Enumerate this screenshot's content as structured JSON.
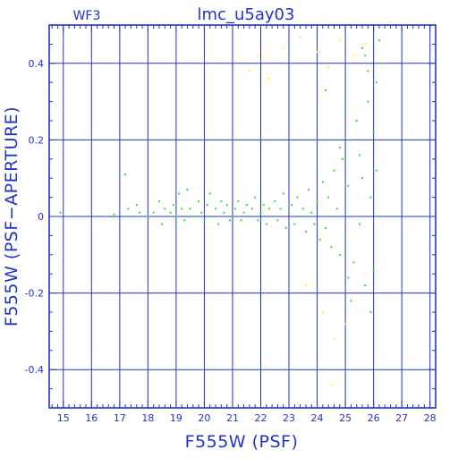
{
  "chart_data": {
    "type": "scatter",
    "title": "lmc_u5ay03",
    "subtitle": "WF3",
    "xlabel": "F555W (PSF)",
    "ylabel": "F555W (PSF−APERTURE)",
    "xlim": [
      14.5,
      28.2
    ],
    "ylim": [
      -0.5,
      0.5
    ],
    "x_ticks": [
      15,
      16,
      17,
      18,
      19,
      20,
      21,
      22,
      23,
      24,
      25,
      26,
      27,
      28
    ],
    "y_ticks": [
      0.4,
      0.2,
      0,
      -0.2,
      -0.4
    ],
    "y_tick_labels": [
      "0.4",
      "0.2",
      "0",
      "-0.2",
      "-0.4"
    ],
    "grid": true,
    "colors": {
      "axis": "#2233cc",
      "primary_points": "#33dd33",
      "secondary_points": "#ffee33"
    },
    "series": [
      {
        "points": [
          [
            14.9,
            0.01
          ],
          [
            16.7,
            0.0
          ],
          [
            16.8,
            0.005
          ],
          [
            17.2,
            0.11
          ],
          [
            17.3,
            0.02
          ],
          [
            17.6,
            0.03
          ],
          [
            17.7,
            0.01
          ],
          [
            18.0,
            0.0
          ],
          [
            18.2,
            0.01
          ],
          [
            18.4,
            0.04
          ],
          [
            18.5,
            -0.02
          ],
          [
            18.6,
            0.02
          ],
          [
            18.8,
            0.01
          ],
          [
            18.9,
            0.03
          ],
          [
            19.0,
            0.0
          ],
          [
            19.1,
            0.06
          ],
          [
            19.2,
            0.02
          ],
          [
            19.3,
            -0.01
          ],
          [
            19.4,
            0.07
          ],
          [
            19.5,
            0.02
          ],
          [
            19.6,
            0.0
          ],
          [
            19.8,
            0.04
          ],
          [
            19.9,
            0.01
          ],
          [
            20.0,
            -0.01
          ],
          [
            20.1,
            0.03
          ],
          [
            20.2,
            0.06
          ],
          [
            20.3,
            0.0
          ],
          [
            20.4,
            0.02
          ],
          [
            20.5,
            -0.02
          ],
          [
            20.6,
            0.04
          ],
          [
            20.7,
            0.01
          ],
          [
            20.8,
            0.03
          ],
          [
            20.9,
            -0.01
          ],
          [
            21.0,
            0.0
          ],
          [
            21.1,
            0.02
          ],
          [
            21.2,
            0.04
          ],
          [
            21.3,
            -0.01
          ],
          [
            21.4,
            0.01
          ],
          [
            21.5,
            0.03
          ],
          [
            21.6,
            0.0
          ],
          [
            21.7,
            0.02
          ],
          [
            21.8,
            0.05
          ],
          [
            21.9,
            -0.01
          ],
          [
            22.0,
            0.01
          ],
          [
            22.1,
            0.03
          ],
          [
            22.2,
            -0.02
          ],
          [
            22.3,
            0.02
          ],
          [
            22.4,
            0.0
          ],
          [
            22.5,
            0.04
          ],
          [
            22.6,
            -0.01
          ],
          [
            22.7,
            0.02
          ],
          [
            22.8,
            0.06
          ],
          [
            22.9,
            -0.03
          ],
          [
            23.0,
            0.01
          ],
          [
            23.1,
            0.03
          ],
          [
            23.2,
            -0.02
          ],
          [
            23.3,
            0.05
          ],
          [
            23.4,
            0.0
          ],
          [
            23.5,
            0.02
          ],
          [
            23.6,
            -0.04
          ],
          [
            23.7,
            0.07
          ],
          [
            23.8,
            0.01
          ],
          [
            23.9,
            -0.02
          ],
          [
            24.0,
            0.04
          ],
          [
            24.1,
            -0.06
          ],
          [
            24.2,
            0.09
          ],
          [
            24.3,
            -0.03
          ],
          [
            24.4,
            0.05
          ],
          [
            24.5,
            -0.08
          ],
          [
            24.6,
            0.12
          ],
          [
            24.7,
            0.02
          ],
          [
            24.8,
            -0.1
          ],
          [
            24.9,
            0.15
          ],
          [
            25.0,
            -0.05
          ],
          [
            25.1,
            0.08
          ],
          [
            25.2,
            0.2
          ],
          [
            25.3,
            -0.12
          ],
          [
            25.4,
            0.25
          ],
          [
            25.5,
            -0.02
          ],
          [
            25.6,
            0.1
          ],
          [
            25.7,
            -0.18
          ],
          [
            25.8,
            0.3
          ],
          [
            25.9,
            0.05
          ],
          [
            26.0,
            -0.14
          ],
          [
            26.1,
            0.35
          ],
          [
            26.2,
            0.0
          ],
          [
            26.3,
            0.4
          ],
          [
            25.7,
            0.42
          ],
          [
            26.0,
            0.22
          ],
          [
            25.5,
            0.16
          ],
          [
            25.2,
            -0.22
          ],
          [
            25.9,
            -0.25
          ],
          [
            26.1,
            0.12
          ],
          [
            24.8,
            0.18
          ],
          [
            25.0,
            0.27
          ],
          [
            25.8,
            0.38
          ],
          [
            26.2,
            0.46
          ],
          [
            24.3,
            0.33
          ],
          [
            25.1,
            -0.16
          ],
          [
            25.6,
            0.44
          ]
        ]
      },
      {
        "points": [
          [
            21.6,
            0.38
          ],
          [
            21.9,
            0.42
          ],
          [
            22.3,
            0.36
          ],
          [
            22.8,
            0.44
          ],
          [
            23.4,
            0.47
          ],
          [
            24.0,
            0.43
          ],
          [
            24.4,
            0.39
          ],
          [
            24.8,
            0.46
          ],
          [
            25.3,
            0.42
          ],
          [
            25.7,
            0.45
          ],
          [
            23.6,
            -0.18
          ],
          [
            24.2,
            -0.25
          ],
          [
            24.6,
            -0.32
          ],
          [
            25.0,
            -0.28
          ],
          [
            24.5,
            -0.44
          ]
        ]
      }
    ]
  }
}
